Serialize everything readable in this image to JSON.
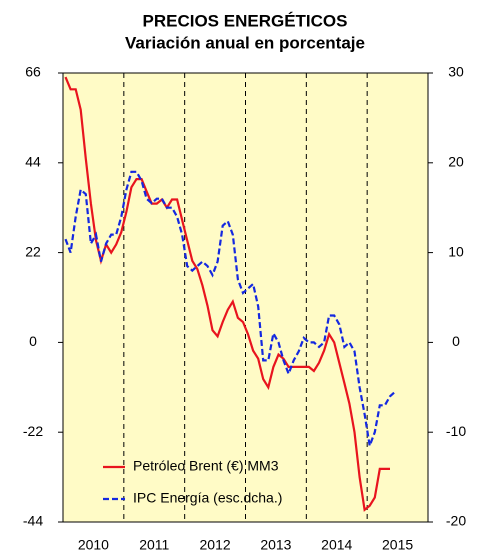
{
  "chart_data": {
    "type": "line",
    "title": "PRECIOS ENERGÉTICOS",
    "subtitle": "Variación anual en porcentaje",
    "categories": [
      null,
      null,
      null,
      null,
      null,
      null,
      "2010",
      null,
      null,
      null,
      null,
      null,
      null,
      null,
      null,
      null,
      null,
      null,
      "2011",
      null,
      null,
      null,
      null,
      null,
      null,
      null,
      null,
      null,
      null,
      null,
      "2012",
      null,
      null,
      null,
      null,
      null,
      null,
      null,
      null,
      null,
      null,
      null,
      "2013",
      null,
      null,
      null,
      null,
      null,
      null,
      null,
      null,
      null,
      null,
      null,
      "2014",
      null,
      null,
      null,
      null,
      null,
      null,
      null,
      null,
      null,
      null,
      null,
      "2015",
      null,
      null,
      null,
      null,
      null
    ],
    "series": [
      {
        "name": "Petróleo Brent (€) MM3",
        "color": "#e8141e",
        "dash": false,
        "axis": "y",
        "values": [
          65,
          62,
          62,
          57,
          45,
          34,
          25,
          20,
          24,
          22,
          24,
          27,
          32,
          38,
          40,
          40,
          37,
          34,
          34,
          35,
          33,
          35,
          35,
          30,
          25,
          20,
          18,
          14,
          9,
          3,
          1.5,
          5,
          8,
          10,
          6,
          5,
          2,
          -2,
          -4,
          -9,
          -11,
          -6,
          -3,
          -4,
          -6,
          -6,
          -6,
          -6,
          -6,
          -7,
          -5,
          -2,
          2,
          0,
          -5,
          -10,
          -15,
          -22,
          -33,
          -41,
          -40,
          -38,
          -31,
          -31,
          -31,
          null,
          null,
          null,
          null,
          null,
          null,
          null
        ]
      },
      {
        "name": "IPC Energía (esc.dcha.)",
        "color": "#1428e0",
        "dash": true,
        "axis": "y2",
        "values": [
          11.5,
          10,
          14,
          17,
          16.5,
          11,
          12,
          9,
          11,
          12,
          12,
          14,
          17,
          19,
          19,
          18,
          16,
          15.5,
          16,
          16,
          15,
          15,
          14,
          12,
          8.5,
          8,
          8.5,
          9,
          8.5,
          7.5,
          9,
          13,
          13.5,
          12,
          7,
          5.5,
          6,
          6.5,
          4,
          -2,
          -2,
          1,
          0,
          -2,
          -3.5,
          -2,
          -1,
          0.5,
          0,
          0,
          -0.5,
          0,
          3,
          3,
          2,
          -0.5,
          0,
          -1,
          -5,
          -8,
          -11.5,
          -10,
          -7,
          -7,
          -6,
          -5.5,
          null,
          null,
          null,
          null,
          null,
          null
        ]
      }
    ],
    "ylim": [
      -44,
      66
    ],
    "yticks": [
      -44,
      -22,
      0,
      22,
      44,
      66
    ],
    "y2lim": [
      -20,
      30
    ],
    "y2ticks": [
      -20,
      -10,
      0,
      10,
      20,
      30
    ],
    "background": "#fffbc6",
    "legend": "lower left"
  }
}
